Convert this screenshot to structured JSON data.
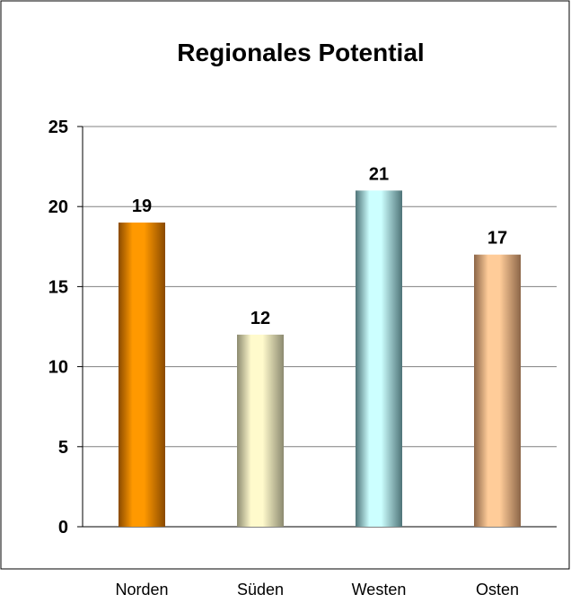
{
  "chart_data": {
    "type": "bar",
    "title": "Regionales Potential",
    "categories": [
      "Norden",
      "Süden",
      "Westen",
      "Osten"
    ],
    "values": [
      19,
      12,
      21,
      17
    ],
    "data_labels": [
      "19",
      "12",
      "21",
      "17"
    ],
    "ylim": [
      0,
      25
    ],
    "yticks": [
      0,
      5,
      10,
      15,
      20,
      25
    ],
    "ytick_labels": [
      "0",
      "5",
      "10",
      "15",
      "20",
      "25"
    ],
    "xlabel": "",
    "ylabel": "",
    "grid": true,
    "legend": "none",
    "bar_colors": [
      "#ff9900",
      "#fffacc",
      "#ccffff",
      "#ffcc99"
    ],
    "bar_shade_colors": [
      "#8a4a00",
      "#8c8a70",
      "#4f7478",
      "#8c6648"
    ]
  }
}
